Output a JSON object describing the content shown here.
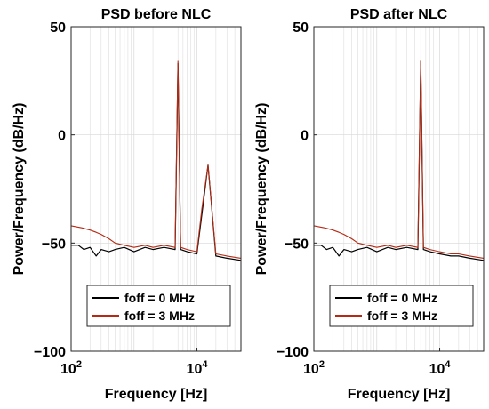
{
  "chart_data": [
    {
      "type": "line",
      "title": "PSD before NLC",
      "xlabel": "Frequency [Hz]",
      "ylabel": "Power/Frequency (dB/Hz)",
      "xscale": "log",
      "xlim": [
        100,
        50000
      ],
      "ylim": [
        -100,
        50
      ],
      "yticks": [
        50,
        0,
        -50,
        -100
      ],
      "yticklabels": [
        "50",
        "0",
        "−50",
        "−100"
      ],
      "xtick_base": "10",
      "xtick_exponents": [
        "2",
        "4"
      ],
      "grid": true,
      "legend_position": "bottom",
      "series": [
        {
          "name": "foff = 0 MHz",
          "color": "#000000",
          "x": [
            100,
            130,
            160,
            200,
            250,
            300,
            400,
            500,
            700,
            1000,
            1500,
            2000,
            3000,
            4500,
            5000,
            5500,
            7000,
            10000,
            15000,
            20000,
            30000,
            50000
          ],
          "y": [
            -51,
            -51,
            -53,
            -52,
            -56,
            -53,
            -54,
            -53,
            -52,
            -54,
            -52,
            -53,
            -52,
            -53,
            33,
            -53,
            -54,
            -55,
            -14,
            -56,
            -57,
            -58
          ]
        },
        {
          "name": "foff = 3 MHz",
          "color": "#b52a14",
          "x": [
            100,
            150,
            200,
            250,
            300,
            400,
            500,
            700,
            1000,
            1500,
            2000,
            3000,
            4500,
            5000,
            5500,
            7000,
            10000,
            12000,
            15000,
            20000,
            30000,
            50000
          ],
          "y": [
            -42,
            -43,
            -44,
            -45,
            -46,
            -48,
            -50,
            -51,
            -52,
            -51,
            -52,
            -51,
            -52,
            34,
            -52,
            -53,
            -54,
            -34,
            -14,
            -55,
            -56,
            -57
          ]
        }
      ]
    },
    {
      "type": "line",
      "title": "PSD after NLC",
      "xlabel": "Frequency [Hz]",
      "ylabel": "Power/Frequency (dB/Hz)",
      "xscale": "log",
      "xlim": [
        100,
        50000
      ],
      "ylim": [
        -100,
        50
      ],
      "yticks": [
        50,
        0,
        -50,
        -100
      ],
      "yticklabels": [
        "50",
        "0",
        "−50",
        "−100"
      ],
      "xtick_base": "10",
      "xtick_exponents": [
        "2",
        "4"
      ],
      "grid": true,
      "legend_position": "bottom",
      "series": [
        {
          "name": "foff = 0 MHz",
          "color": "#000000",
          "x": [
            100,
            130,
            160,
            200,
            250,
            300,
            400,
            500,
            700,
            1000,
            1500,
            2000,
            3000,
            4500,
            5000,
            5500,
            7000,
            10000,
            15000,
            20000,
            30000,
            50000
          ],
          "y": [
            -51,
            -51,
            -53,
            -52,
            -56,
            -53,
            -54,
            -53,
            -52,
            -54,
            -52,
            -53,
            -52,
            -53,
            34,
            -53,
            -54,
            -55,
            -56,
            -56,
            -57,
            -58
          ]
        },
        {
          "name": "foff = 3 MHz",
          "color": "#b52a14",
          "x": [
            100,
            150,
            200,
            250,
            300,
            400,
            500,
            700,
            1000,
            1500,
            2000,
            3000,
            4500,
            5000,
            5500,
            7000,
            10000,
            15000,
            20000,
            30000,
            50000
          ],
          "y": [
            -42,
            -43,
            -44,
            -45,
            -46,
            -48,
            -50,
            -51,
            -52,
            -51,
            -52,
            -51,
            -52,
            34,
            -52,
            -53,
            -54,
            -55,
            -55,
            -56,
            -57
          ]
        }
      ]
    }
  ]
}
